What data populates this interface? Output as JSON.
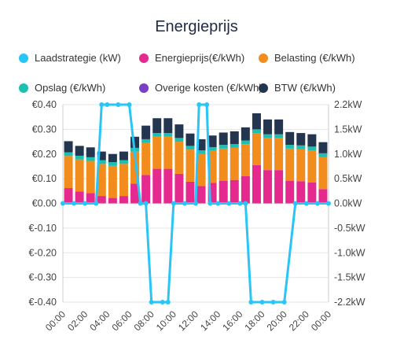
{
  "chart_data": {
    "type": "bar",
    "title": "Energieprijs",
    "legend": {
      "placement": "top",
      "entries": [
        {
          "key": "laadstrategie",
          "label": "Laadstrategie (kW)",
          "color": "#29c5f6"
        },
        {
          "key": "energieprijs",
          "label": "Energieprijs(€/kWh)",
          "color": "#e6298f"
        },
        {
          "key": "belasting",
          "label": "Belasting (€/kWh)",
          "color": "#f28c1c"
        },
        {
          "key": "opslag",
          "label": "Opslag (€/kWh)",
          "color": "#1dbfb0"
        },
        {
          "key": "overige",
          "label": "Overige kosten (€/kWh)",
          "color": "#7b3fc4"
        },
        {
          "key": "btw",
          "label": "BTW (€/kWh)",
          "color": "#24354f"
        }
      ]
    },
    "x_ticks": [
      "00:00",
      "02:00",
      "04:00",
      "06:00",
      "08:00",
      "10:00",
      "12:00",
      "14:00",
      "16:00",
      "18:00",
      "20:00",
      "22:00",
      "00:00"
    ],
    "y_left": {
      "min": -0.4,
      "max": 0.4,
      "ticks": [
        "€0.40",
        "€0.30",
        "€0.20",
        "€0.10",
        "€0.00",
        "€-0.10",
        "€-0.20",
        "€-0.30",
        "€-0.40"
      ]
    },
    "y_right": {
      "min": -2.2,
      "max": 2.2,
      "ticks": [
        "2.2kW",
        "1.5kW",
        "1.0kW",
        "0.5kW",
        "0.0kW",
        "-0.5kW",
        "-1.0kW",
        "-1.5kW",
        "-2.2kW"
      ]
    },
    "hours": 24,
    "series": [
      {
        "key": "energieprijs",
        "name": "Energieprijs(€/kWh)",
        "values": [
          0.062,
          0.048,
          0.042,
          0.03,
          0.022,
          0.03,
          0.08,
          0.115,
          0.14,
          0.14,
          0.12,
          0.088,
          0.07,
          0.083,
          0.092,
          0.095,
          0.11,
          0.155,
          0.135,
          0.135,
          0.092,
          0.09,
          0.085,
          0.058
        ]
      },
      {
        "key": "belasting",
        "name": "Belasting (€/kWh)",
        "values": [
          0.13,
          0.13,
          0.13,
          0.13,
          0.13,
          0.13,
          0.13,
          0.13,
          0.13,
          0.13,
          0.13,
          0.13,
          0.13,
          0.13,
          0.13,
          0.13,
          0.13,
          0.13,
          0.13,
          0.13,
          0.13,
          0.13,
          0.13,
          0.13
        ]
      },
      {
        "key": "opslag",
        "name": "Opslag (€/kWh)",
        "values": [
          0.015,
          0.015,
          0.015,
          0.015,
          0.015,
          0.015,
          0.015,
          0.015,
          0.015,
          0.015,
          0.015,
          0.015,
          0.015,
          0.015,
          0.015,
          0.015,
          0.015,
          0.015,
          0.015,
          0.015,
          0.015,
          0.015,
          0.015,
          0.015
        ]
      },
      {
        "key": "overige",
        "name": "Overige kosten (€/kWh)",
        "values": [
          0,
          0,
          0,
          0,
          0,
          0,
          0,
          0,
          0,
          0,
          0,
          0,
          0,
          0,
          0,
          0,
          0,
          0,
          0,
          0,
          0,
          0,
          0,
          0
        ]
      },
      {
        "key": "btw",
        "name": "BTW (€/kWh)",
        "values": [
          0.045,
          0.04,
          0.04,
          0.035,
          0.033,
          0.035,
          0.045,
          0.055,
          0.06,
          0.06,
          0.055,
          0.05,
          0.045,
          0.047,
          0.05,
          0.052,
          0.053,
          0.065,
          0.06,
          0.06,
          0.052,
          0.05,
          0.05,
          0.045
        ]
      }
    ],
    "laadstrategie": {
      "name": "Laadstrategie (kW)",
      "times": [
        0,
        1,
        2,
        3,
        3.5,
        4,
        5,
        6,
        7,
        7.5,
        8,
        9,
        9.5,
        10,
        11,
        12,
        12.3,
        13,
        13.3,
        14,
        15,
        16,
        16.5,
        17,
        18,
        19,
        20,
        21,
        22,
        23,
        24
      ],
      "values": [
        0,
        0,
        0,
        0,
        2.2,
        2.2,
        2.2,
        2.2,
        0,
        0,
        -2.2,
        -2.2,
        -2.2,
        0,
        0,
        0,
        2.2,
        2.2,
        0,
        0,
        0,
        0,
        0,
        -2.2,
        -2.2,
        -2.2,
        -2.2,
        0,
        0,
        0,
        0
      ]
    }
  }
}
